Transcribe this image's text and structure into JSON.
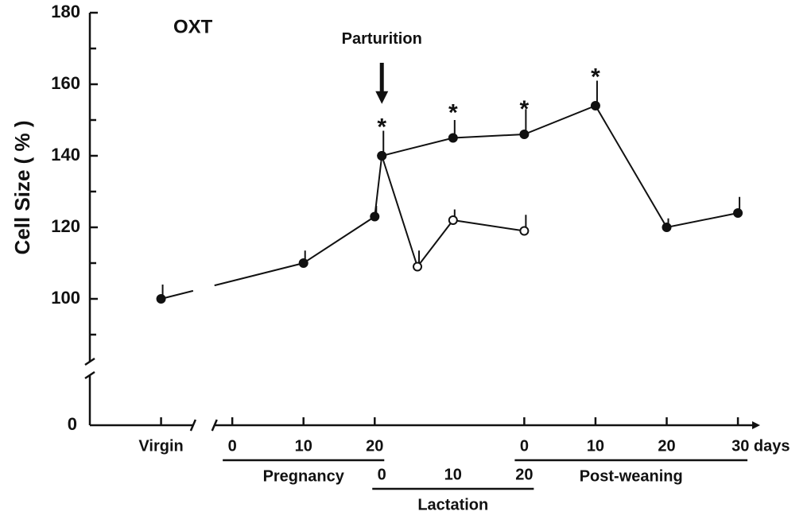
{
  "chart_data": {
    "type": "line",
    "title": "OXT",
    "y_label": "Cell Size ( % )",
    "ylim": [
      80,
      180
    ],
    "yticks": [
      100,
      120,
      140,
      160,
      180
    ],
    "yminor": [
      90,
      110,
      130,
      150,
      170
    ],
    "y_below_break": [
      0
    ],
    "xlim": [
      -20,
      73
    ],
    "xbreak": [
      -5.5,
      -2.5
    ],
    "xticks": [
      {
        "value": -10,
        "label": "Virgin"
      }
    ],
    "x_groups": [
      {
        "name": "Pregnancy",
        "ticks": [
          {
            "value": 0,
            "label": "0"
          },
          {
            "value": 10,
            "label": "10"
          },
          {
            "value": 20,
            "label": "20"
          }
        ]
      },
      {
        "name": "Lactation",
        "ticks": [
          {
            "value": 21,
            "label": "0"
          },
          {
            "value": 31,
            "label": "10"
          },
          {
            "value": 41,
            "label": "20"
          }
        ]
      },
      {
        "name": "Post-weaning",
        "ticks": [
          {
            "value": 41,
            "label": "0"
          },
          {
            "value": 51,
            "label": "10"
          },
          {
            "value": 61,
            "label": "20"
          },
          {
            "value": 71,
            "label": "30 days"
          }
        ]
      }
    ],
    "series": [
      {
        "color": "#111111",
        "fill": "#ffffff",
        "x": [
          21,
          26,
          31,
          41
        ],
        "values": [
          140,
          109,
          122,
          119
        ],
        "errors": [
          null,
          4.5,
          3,
          4.5
        ]
      },
      {
        "color": "#111111",
        "fill": "#111111",
        "x": [
          -10,
          10,
          20,
          21,
          31,
          41,
          51,
          61,
          71
        ],
        "values": [
          100,
          110,
          123,
          140,
          145,
          146,
          154,
          120,
          124
        ],
        "errors": [
          4,
          3.5,
          3,
          7,
          5,
          7,
          7,
          2.5,
          4.5
        ]
      }
    ],
    "annotations": [
      {
        "text": "Parturition",
        "x": 21,
        "y": 172.5,
        "arrow_from": 166,
        "arrow_to": 154.5
      },
      {
        "text": "*",
        "x": 21,
        "y": 149
      },
      {
        "text": "*",
        "x": 31,
        "y": 153
      },
      {
        "text": "*",
        "x": 41,
        "y": 154
      },
      {
        "text": "*",
        "x": 51,
        "y": 163
      }
    ]
  }
}
